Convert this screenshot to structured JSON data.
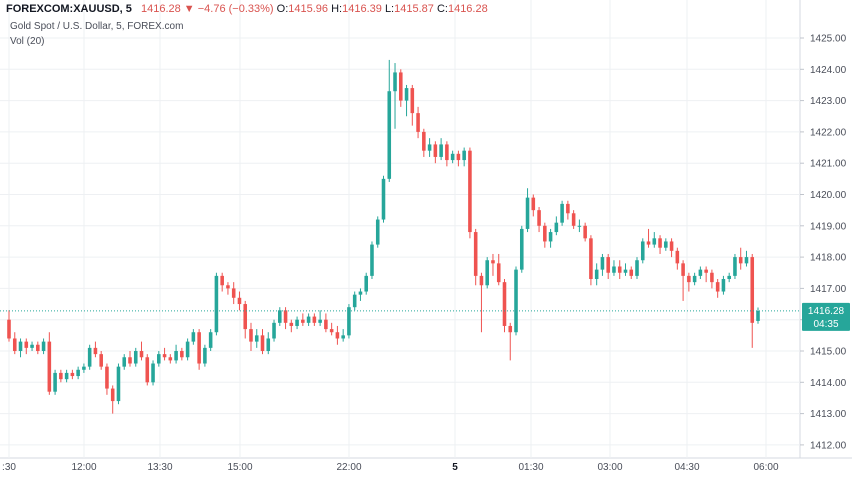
{
  "header": {
    "symbol": "FOREXCOM:XAUUSD, 5",
    "last": "1416.28",
    "arrow": "▼",
    "change": "−4.76 (−0.33%)",
    "o_label": "O:",
    "o_value": "1415.96",
    "h_label": "H:",
    "h_value": "1416.39",
    "l_label": "L:",
    "l_value": "1415.87",
    "c_label": "C:",
    "c_value": "1416.28",
    "title": "Gold Spot / U.S. Dollar, 5, FOREX.com",
    "indicator": "Vol (20)"
  },
  "price_tag": {
    "price": "1416.28",
    "countdown": "04:35"
  },
  "colors": {
    "up": "#26a69a",
    "down": "#ef5350",
    "grid": "#eef0f3",
    "last_line": "#26a69a"
  },
  "chart_data": {
    "type": "candlestick",
    "title": "Gold Spot / U.S. Dollar, 5, FOREX.com",
    "ylim": [
      1411.6,
      1425.5
    ],
    "y_ticks": [
      "1412.00",
      "1413.00",
      "1414.00",
      "1415.00",
      "1416.00",
      "1417.00",
      "1418.00",
      "1419.00",
      "1420.00",
      "1421.00",
      "1422.00",
      "1423.00",
      "1424.00",
      "1425.00"
    ],
    "x_ticks": [
      {
        "label": ":30",
        "bold": false
      },
      {
        "label": "12:00",
        "bold": false
      },
      {
        "label": "13:30",
        "bold": false
      },
      {
        "label": "15:00",
        "bold": false
      },
      {
        "label": "22:00",
        "bold": false
      },
      {
        "label": "5",
        "bold": true
      },
      {
        "label": "01:30",
        "bold": false
      },
      {
        "label": "03:00",
        "bold": false
      },
      {
        "label": "04:30",
        "bold": false
      },
      {
        "label": "06:00",
        "bold": false
      }
    ],
    "last_price": 1416.28,
    "candles": [
      [
        1416.0,
        1415.4,
        1416.3,
        1415.3
      ],
      [
        1415.4,
        1415.0,
        1415.6,
        1414.9
      ],
      [
        1415.0,
        1415.3,
        1415.4,
        1414.8
      ],
      [
        1415.3,
        1415.1,
        1415.4,
        1414.9
      ],
      [
        1415.1,
        1415.2,
        1415.3,
        1415.0
      ],
      [
        1415.2,
        1415.0,
        1415.3,
        1414.9
      ],
      [
        1415.0,
        1415.3,
        1415.4,
        1414.9
      ],
      [
        1415.3,
        1413.7,
        1415.6,
        1413.6
      ],
      [
        1413.7,
        1414.3,
        1414.4,
        1413.6
      ],
      [
        1414.3,
        1414.1,
        1414.4,
        1414.0
      ],
      [
        1414.1,
        1414.3,
        1414.4,
        1414.0
      ],
      [
        1414.3,
        1414.2,
        1414.4,
        1414.1
      ],
      [
        1414.2,
        1414.4,
        1414.5,
        1414.1
      ],
      [
        1414.4,
        1414.5,
        1414.6,
        1414.3
      ],
      [
        1414.5,
        1415.1,
        1415.2,
        1414.4
      ],
      [
        1415.1,
        1414.9,
        1415.3,
        1414.8
      ],
      [
        1414.9,
        1414.5,
        1415.0,
        1414.4
      ],
      [
        1414.5,
        1413.8,
        1414.6,
        1413.6
      ],
      [
        1413.8,
        1413.4,
        1413.9,
        1413.0
      ],
      [
        1413.4,
        1414.5,
        1414.6,
        1413.3
      ],
      [
        1414.5,
        1414.8,
        1414.9,
        1414.4
      ],
      [
        1414.8,
        1414.6,
        1415.0,
        1414.5
      ],
      [
        1414.6,
        1415.0,
        1415.1,
        1414.5
      ],
      [
        1415.0,
        1414.8,
        1415.3,
        1414.7
      ],
      [
        1414.8,
        1414.0,
        1414.9,
        1413.9
      ],
      [
        1414.0,
        1414.6,
        1414.7,
        1413.9
      ],
      [
        1414.6,
        1414.9,
        1415.0,
        1414.5
      ],
      [
        1414.9,
        1414.8,
        1415.1,
        1414.7
      ],
      [
        1414.8,
        1414.7,
        1414.9,
        1414.6
      ],
      [
        1414.7,
        1415.0,
        1415.2,
        1414.6
      ],
      [
        1415.0,
        1414.8,
        1415.1,
        1414.7
      ],
      [
        1414.8,
        1415.3,
        1415.4,
        1414.7
      ],
      [
        1415.3,
        1415.6,
        1415.7,
        1415.2
      ],
      [
        1415.6,
        1414.6,
        1415.7,
        1414.4
      ],
      [
        1414.6,
        1415.1,
        1415.2,
        1414.5
      ],
      [
        1415.1,
        1415.6,
        1415.7,
        1415.0
      ],
      [
        1415.6,
        1417.4,
        1417.5,
        1415.5
      ],
      [
        1417.4,
        1417.1,
        1417.5,
        1416.9
      ],
      [
        1417.1,
        1417.0,
        1417.2,
        1416.8
      ],
      [
        1417.0,
        1416.7,
        1417.2,
        1416.5
      ],
      [
        1416.7,
        1416.5,
        1416.9,
        1416.3
      ],
      [
        1416.5,
        1415.7,
        1416.6,
        1415.4
      ],
      [
        1415.7,
        1415.3,
        1415.9,
        1415.0
      ],
      [
        1415.3,
        1415.5,
        1415.7,
        1415.1
      ],
      [
        1415.5,
        1415.0,
        1415.7,
        1414.9
      ],
      [
        1415.0,
        1415.4,
        1415.6,
        1414.9
      ],
      [
        1415.4,
        1415.9,
        1416.0,
        1415.3
      ],
      [
        1415.9,
        1416.3,
        1416.4,
        1415.8
      ],
      [
        1416.3,
        1415.9,
        1416.4,
        1415.7
      ],
      [
        1415.9,
        1415.8,
        1416.0,
        1415.6
      ],
      [
        1415.8,
        1416.0,
        1416.1,
        1415.7
      ],
      [
        1416.0,
        1415.9,
        1416.2,
        1415.8
      ],
      [
        1415.9,
        1416.1,
        1416.2,
        1415.8
      ],
      [
        1416.1,
        1415.9,
        1416.2,
        1415.8
      ],
      [
        1415.9,
        1416.0,
        1416.3,
        1415.8
      ],
      [
        1416.0,
        1415.7,
        1416.2,
        1415.6
      ],
      [
        1415.7,
        1415.6,
        1415.9,
        1415.5
      ],
      [
        1415.6,
        1415.4,
        1415.8,
        1415.2
      ],
      [
        1415.4,
        1415.5,
        1415.7,
        1415.3
      ],
      [
        1415.5,
        1416.4,
        1416.5,
        1415.4
      ],
      [
        1416.4,
        1416.8,
        1416.9,
        1416.3
      ],
      [
        1416.8,
        1416.9,
        1417.0,
        1416.6
      ],
      [
        1416.9,
        1417.4,
        1417.5,
        1416.8
      ],
      [
        1417.4,
        1418.4,
        1418.5,
        1417.3
      ],
      [
        1418.4,
        1419.2,
        1419.3,
        1418.3
      ],
      [
        1419.2,
        1420.5,
        1420.6,
        1419.1
      ],
      [
        1420.5,
        1423.3,
        1424.3,
        1420.4
      ],
      [
        1423.3,
        1423.9,
        1424.2,
        1422.1
      ],
      [
        1423.9,
        1423.0,
        1424.0,
        1422.8
      ],
      [
        1423.0,
        1423.4,
        1423.5,
        1422.5
      ],
      [
        1423.4,
        1422.6,
        1423.5,
        1422.2
      ],
      [
        1422.6,
        1422.0,
        1422.8,
        1421.8
      ],
      [
        1422.0,
        1421.4,
        1422.1,
        1421.2
      ],
      [
        1421.4,
        1421.6,
        1421.8,
        1421.2
      ],
      [
        1421.6,
        1421.2,
        1421.7,
        1421.0
      ],
      [
        1421.2,
        1421.6,
        1421.8,
        1421.1
      ],
      [
        1421.6,
        1421.1,
        1421.7,
        1420.9
      ],
      [
        1421.1,
        1421.3,
        1421.4,
        1421.0
      ],
      [
        1421.3,
        1421.1,
        1421.4,
        1420.9
      ],
      [
        1421.1,
        1421.4,
        1421.5,
        1420.9
      ],
      [
        1421.4,
        1418.8,
        1421.5,
        1418.6
      ],
      [
        1418.8,
        1417.4,
        1418.9,
        1417.1
      ],
      [
        1417.4,
        1417.1,
        1417.5,
        1415.6
      ],
      [
        1417.1,
        1417.9,
        1418.0,
        1417.0
      ],
      [
        1417.9,
        1417.8,
        1418.1,
        1417.4
      ],
      [
        1417.8,
        1417.2,
        1418.1,
        1417.1
      ],
      [
        1417.2,
        1415.8,
        1417.3,
        1415.6
      ],
      [
        1415.8,
        1415.6,
        1415.9,
        1414.7
      ],
      [
        1415.6,
        1417.6,
        1417.7,
        1415.5
      ],
      [
        1417.6,
        1418.9,
        1419.0,
        1417.5
      ],
      [
        1418.9,
        1419.9,
        1420.2,
        1418.8
      ],
      [
        1419.9,
        1419.5,
        1420.0,
        1419.3
      ],
      [
        1419.5,
        1419.0,
        1419.6,
        1418.8
      ],
      [
        1419.0,
        1418.5,
        1419.1,
        1418.3
      ],
      [
        1418.5,
        1418.8,
        1418.9,
        1418.3
      ],
      [
        1418.8,
        1419.1,
        1419.3,
        1418.7
      ],
      [
        1419.1,
        1419.7,
        1419.8,
        1419.0
      ],
      [
        1419.7,
        1419.4,
        1419.8,
        1419.2
      ],
      [
        1419.4,
        1419.0,
        1419.5,
        1418.9
      ],
      [
        1419.0,
        1419.0,
        1419.2,
        1418.8
      ],
      [
        1419.0,
        1418.6,
        1419.1,
        1418.5
      ],
      [
        1418.6,
        1417.3,
        1418.7,
        1417.1
      ],
      [
        1417.3,
        1417.6,
        1417.8,
        1417.1
      ],
      [
        1417.6,
        1418.0,
        1418.1,
        1417.4
      ],
      [
        1418.0,
        1417.5,
        1418.1,
        1417.3
      ],
      [
        1417.5,
        1417.7,
        1417.9,
        1417.4
      ],
      [
        1417.7,
        1417.5,
        1417.9,
        1417.3
      ],
      [
        1417.5,
        1417.6,
        1417.8,
        1417.4
      ],
      [
        1417.6,
        1417.4,
        1417.7,
        1417.3
      ],
      [
        1417.4,
        1417.9,
        1418.0,
        1417.3
      ],
      [
        1417.9,
        1418.5,
        1418.6,
        1417.8
      ],
      [
        1418.5,
        1418.4,
        1418.9,
        1418.3
      ],
      [
        1418.4,
        1418.6,
        1418.8,
        1418.3
      ],
      [
        1418.6,
        1418.3,
        1418.7,
        1418.1
      ],
      [
        1418.3,
        1418.5,
        1418.6,
        1418.2
      ],
      [
        1418.5,
        1418.2,
        1418.6,
        1418.0
      ],
      [
        1418.2,
        1417.8,
        1418.3,
        1417.6
      ],
      [
        1417.8,
        1417.4,
        1417.9,
        1416.6
      ],
      [
        1417.4,
        1417.2,
        1417.5,
        1416.9
      ],
      [
        1417.2,
        1417.4,
        1417.5,
        1417.1
      ],
      [
        1417.4,
        1417.6,
        1417.7,
        1417.3
      ],
      [
        1417.6,
        1417.5,
        1417.7,
        1417.2
      ],
      [
        1417.5,
        1417.2,
        1417.6,
        1417.0
      ],
      [
        1417.2,
        1416.9,
        1417.3,
        1416.7
      ],
      [
        1416.9,
        1417.3,
        1417.4,
        1416.8
      ],
      [
        1417.3,
        1417.4,
        1417.5,
        1417.2
      ],
      [
        1417.4,
        1418.0,
        1418.1,
        1417.3
      ],
      [
        1418.0,
        1417.8,
        1418.3,
        1417.6
      ],
      [
        1417.8,
        1418.0,
        1418.2,
        1417.7
      ],
      [
        1418.0,
        1415.9,
        1418.1,
        1415.1
      ],
      [
        1415.96,
        1416.28,
        1416.39,
        1415.87
      ]
    ]
  }
}
